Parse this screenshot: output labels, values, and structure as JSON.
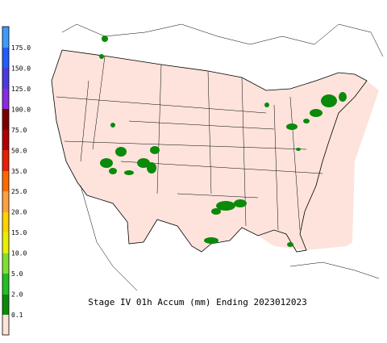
{
  "legend": {
    "labels": [
      "175.0",
      "150.0",
      "125.0",
      "100.0",
      "75.0",
      "50.0",
      "35.0",
      "25.0",
      "20.0",
      "15.0",
      "10.0",
      "5.0",
      "2.0",
      "0.1"
    ]
  },
  "title": "Stage IV 01h Accum (mm) Ending 2023012023"
}
